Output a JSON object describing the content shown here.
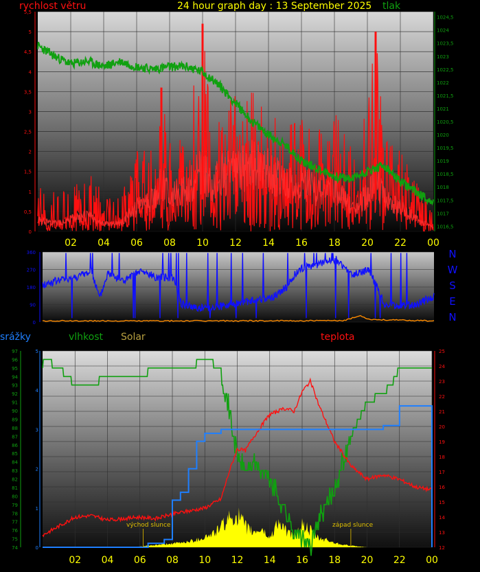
{
  "colors": {
    "background": "#000000",
    "wind": "#ff1010",
    "pressure": "#10a010",
    "direction": "#1010ff",
    "humidity": "#10a010",
    "temperature": "#ff1010",
    "rain": "#1e7fff",
    "solar": "#ffff00",
    "time_axis": "#ffff00",
    "orange": "#ff8c00"
  },
  "header": {
    "wind_label": "rychlost větru",
    "title": "24 hour graph day : 13 September 2025",
    "pressure_label": "tlak"
  },
  "compass": [
    "N",
    "W",
    "S",
    "E",
    "N"
  ],
  "lower_header": {
    "rain_label": "srážky",
    "humidity_label": "vlhkost",
    "solar_label": "Solar",
    "temperature_label": "teplota"
  },
  "annotations": {
    "sunrise": "východ slunce",
    "sunset": "západ slunce"
  },
  "chart_data": [
    {
      "type": "line",
      "x_ticks": [
        "02",
        "04",
        "06",
        "08",
        "10",
        "12",
        "14",
        "16",
        "18",
        "20",
        "22",
        "00"
      ],
      "xlim": [
        0,
        24
      ],
      "ylim_left": [
        0,
        5.5
      ],
      "yticks_left": [
        "0",
        "0,5",
        "1",
        "1,5",
        "2",
        "2,5",
        "3",
        "3,5",
        "4",
        "4,5",
        "5",
        "5,5"
      ],
      "ylim_right": [
        1016.3,
        1024.7
      ],
      "yticks_right": [
        "1016,5",
        "1017",
        "1017,5",
        "1018",
        "1018,5",
        "1019",
        "1019,5",
        "1020",
        "1020,5",
        "1021",
        "1021,5",
        "1022",
        "1022,5",
        "1023",
        "1023,5",
        "1024",
        "1024,5"
      ],
      "grid": true,
      "series": [
        {
          "name": "rychlost větru",
          "axis": "left",
          "x": [
            0,
            1,
            2,
            3,
            4,
            5,
            6,
            7,
            7.5,
            8,
            9,
            10,
            10.5,
            11,
            12,
            12.5,
            13,
            14,
            15,
            16,
            17,
            18,
            19,
            20,
            20.5,
            21,
            22,
            23,
            24
          ],
          "gust": [
            1.1,
            1.0,
            1.0,
            1.5,
            1.0,
            0.8,
            2.0,
            2.3,
            3.6,
            2.2,
            2.5,
            5.2,
            2.8,
            3.0,
            3.4,
            3.1,
            3.5,
            3.0,
            2.6,
            2.8,
            2.5,
            3.0,
            2.1,
            3.0,
            5.0,
            2.3,
            2.0,
            1.2,
            0.4
          ],
          "avg": [
            0.3,
            0.2,
            0.3,
            0.4,
            0.2,
            0.2,
            0.6,
            0.8,
            1.2,
            0.9,
            1.0,
            1.6,
            1.2,
            1.4,
            1.5,
            1.6,
            1.7,
            1.5,
            1.2,
            1.3,
            1.0,
            1.1,
            0.6,
            0.9,
            1.5,
            0.8,
            0.6,
            0.3,
            0.1
          ]
        },
        {
          "name": "tlak",
          "axis": "right",
          "x": [
            0,
            1,
            2,
            3,
            4,
            5,
            6,
            7,
            8,
            9,
            10,
            11,
            12,
            13,
            14,
            15,
            16,
            17,
            18,
            19,
            20,
            21,
            22,
            23,
            24
          ],
          "values": [
            1023.4,
            1023.0,
            1022.7,
            1022.8,
            1022.6,
            1022.8,
            1022.6,
            1022.5,
            1022.6,
            1022.6,
            1022.4,
            1021.9,
            1021.2,
            1020.5,
            1020.0,
            1019.6,
            1019.0,
            1018.7,
            1018.4,
            1018.3,
            1018.6,
            1018.8,
            1018.2,
            1017.8,
            1017.4
          ]
        }
      ]
    },
    {
      "type": "line",
      "x_ticks": [
        "02",
        "04",
        "06",
        "08",
        "10",
        "12",
        "14",
        "16",
        "18",
        "20",
        "22",
        "00"
      ],
      "xlim": [
        0,
        24
      ],
      "ylim": [
        0,
        360
      ],
      "yticks": [
        "0",
        "90",
        "180",
        "270",
        "360"
      ],
      "series": [
        {
          "name": "direction",
          "x": [
            0,
            1,
            2,
            3,
            3.5,
            4,
            5,
            6,
            7,
            8,
            8.5,
            9,
            10,
            11,
            12,
            13,
            14,
            15,
            15.5,
            16,
            17,
            18,
            19,
            20,
            21,
            22,
            23,
            24
          ],
          "values": [
            190,
            215,
            230,
            260,
            120,
            250,
            210,
            260,
            230,
            230,
            95,
            80,
            70,
            80,
            100,
            110,
            120,
            180,
            250,
            280,
            300,
            320,
            240,
            270,
            90,
            80,
            95,
            130
          ]
        },
        {
          "name": "orange",
          "x": [
            0,
            10,
            18.5,
            19,
            19.5,
            20,
            21,
            24
          ],
          "values": [
            3,
            3,
            4,
            18,
            30,
            12,
            8,
            3
          ]
        }
      ]
    },
    {
      "type": "line",
      "x_ticks": [
        "02",
        "04",
        "06",
        "08",
        "10",
        "12",
        "14",
        "16",
        "18",
        "20",
        "22",
        "00"
      ],
      "xlim": [
        0,
        24
      ],
      "ylim_humidity": [
        74,
        97
      ],
      "yticks_humidity": [
        "74",
        "75",
        "76",
        "77",
        "78",
        "79",
        "80",
        "81",
        "82",
        "83",
        "84",
        "85",
        "86",
        "87",
        "88",
        "89",
        "90",
        "91",
        "92",
        "93",
        "94",
        "95",
        "96",
        "97"
      ],
      "ylim_rain": [
        0,
        5
      ],
      "yticks_rain": [
        "0",
        "1",
        "2",
        "3",
        "4",
        "5"
      ],
      "ylim_temperature": [
        12,
        25
      ],
      "yticks_temperature": [
        "12",
        "13",
        "14",
        "15",
        "16",
        "17",
        "18",
        "19",
        "20",
        "21",
        "22",
        "23",
        "24",
        "25"
      ],
      "series": [
        {
          "name": "vlhkost",
          "axis": "humidity",
          "x": [
            0,
            0.1,
            1,
            2,
            3,
            4,
            5,
            6,
            7,
            8,
            9,
            10,
            11,
            11.5,
            12,
            12.5,
            13,
            14,
            15,
            15.5,
            16,
            16.5,
            17,
            18,
            19,
            20,
            21,
            21.5,
            22,
            23,
            24
          ],
          "values": [
            95,
            96,
            95,
            93,
            93,
            94,
            94,
            94,
            95,
            95,
            95,
            96,
            95,
            90,
            85,
            83,
            84,
            82,
            78,
            76,
            75,
            74,
            77,
            81,
            87,
            91,
            92,
            93,
            95,
            95,
            95
          ]
        },
        {
          "name": "teplota",
          "axis": "temperature",
          "x": [
            0,
            1,
            2,
            3,
            4,
            5,
            6,
            7,
            8,
            9,
            10,
            11,
            11.5,
            12,
            12.5,
            13,
            14,
            15,
            15.5,
            16,
            16.5,
            17,
            18,
            19,
            20,
            21,
            22,
            23,
            24
          ],
          "values": [
            12.8,
            13.4,
            14.0,
            14.1,
            13.8,
            13.9,
            14.0,
            13.9,
            14.2,
            14.4,
            14.6,
            15.2,
            17.0,
            18.5,
            18.4,
            19.3,
            20.8,
            21.2,
            21.0,
            22.3,
            23.0,
            21.5,
            19.0,
            17.4,
            16.5,
            16.8,
            16.5,
            16.0,
            15.8
          ]
        },
        {
          "name": "srážky",
          "axis": "rain",
          "x": [
            0,
            5.5,
            6.5,
            7.5,
            8.0,
            8.5,
            9.0,
            9.5,
            10.0,
            11.0,
            19.5,
            20.5,
            21.0,
            22.0,
            23.0,
            23.9,
            24
          ],
          "values": [
            0,
            0,
            0.1,
            0.2,
            1.2,
            1.4,
            2.0,
            2.7,
            2.9,
            3.0,
            3.0,
            3.0,
            3.1,
            3.6,
            3.6,
            3.6,
            0
          ]
        },
        {
          "name": "Solar",
          "axis": "humidity",
          "x": [
            5.5,
            6.5,
            7.5,
            8.5,
            9.5,
            10.5,
            11.5,
            12,
            12.5,
            13,
            13.5,
            14,
            14.5,
            15,
            15.5,
            16,
            16.5,
            17,
            17.5,
            18,
            19,
            20
          ],
          "values": [
            74,
            74.2,
            74.4,
            74.6,
            75,
            75.8,
            77.8,
            78.5,
            76.8,
            76,
            76.5,
            75.2,
            77.5,
            76.2,
            75.5,
            77,
            76.3,
            75.2,
            75.0,
            74.6,
            74.2,
            74
          ]
        }
      ]
    }
  ]
}
